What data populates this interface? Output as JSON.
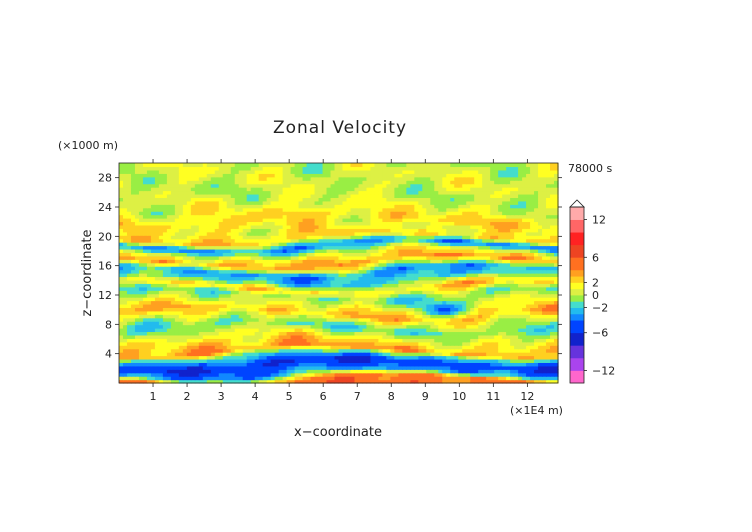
{
  "chart_data": {
    "type": "heatmap",
    "title": "Zonal Velocity",
    "xlabel": "x−coordinate",
    "ylabel": "z−coordinate",
    "x_unit": "(×1E4 m)",
    "y_unit": "(×1000 m)",
    "time_label": "78000 s",
    "xlim": [
      0,
      12.9
    ],
    "ylim": [
      0,
      30
    ],
    "x_ticks": [
      "1",
      "2",
      "3",
      "4",
      "5",
      "6",
      "7",
      "8",
      "9",
      "10",
      "11",
      "12"
    ],
    "y_ticks": [
      "4",
      "8",
      "12",
      "16",
      "20",
      "24",
      "28"
    ],
    "colorbar": {
      "ticks": [
        {
          "value": 12,
          "label": "12"
        },
        {
          "value": 6,
          "label": "6"
        },
        {
          "value": 2,
          "label": "2"
        },
        {
          "value": 0,
          "label": "0"
        },
        {
          "value": -2,
          "label": "−2"
        },
        {
          "value": -6,
          "label": "−6"
        },
        {
          "value": -12,
          "label": "−12"
        }
      ],
      "levels": [
        -14,
        -12,
        -10,
        -8,
        -6,
        -4,
        -3,
        -2,
        -1,
        0,
        1,
        2,
        3,
        4,
        6,
        8,
        10,
        12,
        14
      ],
      "colors": [
        "#ff66cc",
        "#aa44ee",
        "#6633dd",
        "#1122cc",
        "#0044ff",
        "#1188ff",
        "#22bbee",
        "#44ddcc",
        "#99ee44",
        "#ddf044",
        "#ffff22",
        "#ffd020",
        "#ffa020",
        "#ff7020",
        "#ee4422",
        "#ff2222",
        "#ff6666",
        "#ffaaaa"
      ]
    },
    "bands": [
      {
        "z": 0.4,
        "u": 5.0
      },
      {
        "z": 1.3,
        "u": -3.0
      },
      {
        "z": 2.6,
        "u": -6.0
      },
      {
        "z": 3.8,
        "u": -1.5
      },
      {
        "z": 4.4,
        "u": 3.5
      },
      {
        "z": 6.0,
        "u": 1.5
      },
      {
        "z": 7.6,
        "u": -1.2
      },
      {
        "z": 8.6,
        "u": 0.5
      },
      {
        "z": 9.6,
        "u": 3.0
      },
      {
        "z": 10.8,
        "u": 1.0
      },
      {
        "z": 12.2,
        "u": -1.0
      },
      {
        "z": 13.2,
        "u": 2.0
      },
      {
        "z": 14.2,
        "u": -2.0
      },
      {
        "z": 15.4,
        "u": -3.0
      },
      {
        "z": 16.6,
        "u": 3.5
      },
      {
        "z": 17.6,
        "u": 1.5
      },
      {
        "z": 18.8,
        "u": -3.5
      },
      {
        "z": 19.8,
        "u": 2.5
      },
      {
        "z": 21.0,
        "u": 1.2
      },
      {
        "z": 22.4,
        "u": 2.2
      },
      {
        "z": 24.0,
        "u": 0.8
      },
      {
        "z": 26.0,
        "u": 0.2
      },
      {
        "z": 28.0,
        "u": 0.6
      },
      {
        "z": 30.0,
        "u": 0.3
      }
    ]
  }
}
